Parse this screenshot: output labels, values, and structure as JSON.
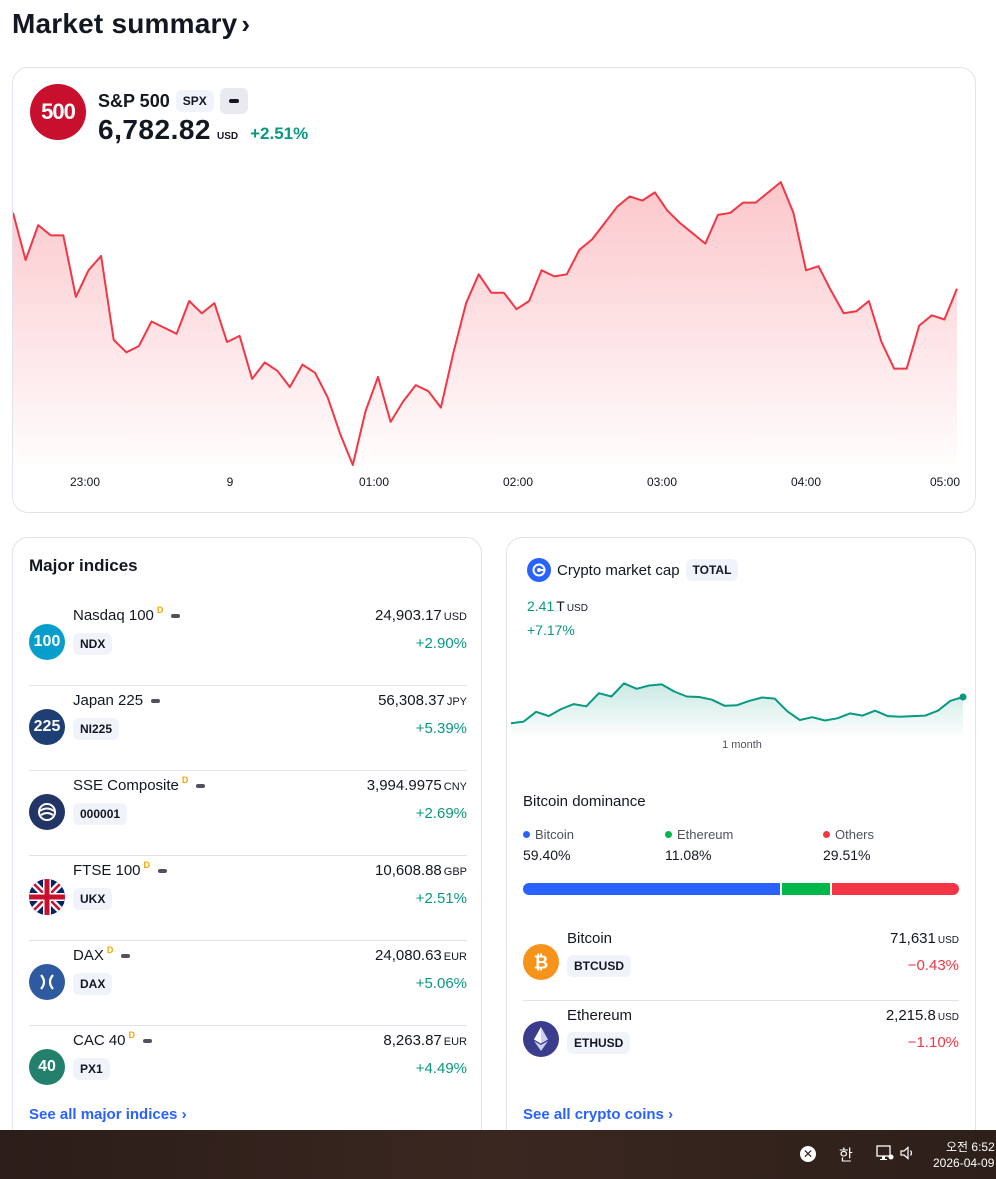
{
  "page": {
    "title": "Market summary",
    "chevron": "›"
  },
  "spx": {
    "logo_text": "500",
    "name": "S&P 500",
    "symbol": "SPX",
    "price": "6,782.82",
    "currency": "USD",
    "change": "+2.51%",
    "accent": "#c8102e",
    "line_color": "#f23645",
    "x_ticks": [
      "23:00",
      "9",
      "01:00",
      "02:00",
      "03:00",
      "04:00",
      "05:00"
    ]
  },
  "chart_data": [
    {
      "type": "area",
      "title": "S&P 500",
      "xlabel": "",
      "ylabel": "",
      "tick_labels": [
        "23:00",
        "9",
        "01:00",
        "02:00",
        "03:00",
        "04:00",
        "05:00"
      ],
      "ylim": [
        6658,
        6798
      ],
      "values": [
        6781,
        6758,
        6775,
        6770,
        6770,
        6740,
        6753,
        6760,
        6719,
        6713,
        6716,
        6728,
        6725,
        6722,
        6738,
        6732,
        6737,
        6718,
        6721,
        6700,
        6708,
        6704,
        6696,
        6707,
        6703,
        6691,
        6673,
        6658,
        6684,
        6701,
        6679,
        6689,
        6697,
        6694,
        6686,
        6713,
        6737,
        6751,
        6742,
        6742,
        6734,
        6738,
        6753,
        6750,
        6751,
        6763,
        6768,
        6776,
        6784,
        6789,
        6787,
        6791,
        6782,
        6776,
        6771,
        6766,
        6780,
        6781,
        6786,
        6786,
        6791,
        6796,
        6781,
        6753,
        6755,
        6743,
        6732,
        6733,
        6738,
        6718,
        6705,
        6705,
        6726,
        6731,
        6729,
        6744
      ]
    },
    {
      "type": "area",
      "title": "Crypto market cap",
      "xlabel": "1 month",
      "ylabel": "",
      "ylim": [
        2.3,
        2.45
      ],
      "values": [
        2.327,
        2.33,
        2.348,
        2.34,
        2.353,
        2.362,
        2.358,
        2.382,
        2.376,
        2.4,
        2.39,
        2.396,
        2.398,
        2.385,
        2.376,
        2.375,
        2.37,
        2.359,
        2.36,
        2.368,
        2.374,
        2.372,
        2.349,
        2.333,
        2.338,
        2.332,
        2.336,
        2.345,
        2.341,
        2.35,
        2.34,
        2.339,
        2.34,
        2.341,
        2.35,
        2.368,
        2.375
      ]
    }
  ],
  "major_indices": {
    "title": "Major indices",
    "see_all": "See all major indices",
    "items": [
      {
        "logo_text": "100",
        "logo_color": "#089ecb",
        "name": "Nasdaq 100",
        "flag": "D",
        "symbol": "NDX",
        "value": "24,903.17",
        "currency": "USD",
        "change": "+2.90%"
      },
      {
        "logo_text": "225",
        "logo_color": "#1e3f73",
        "name": "Japan 225",
        "flag": "",
        "symbol": "NI225",
        "value": "56,308.37",
        "currency": "JPY",
        "change": "+5.39%"
      },
      {
        "logo_text": "",
        "logo_color": "#233566",
        "name": "SSE Composite",
        "flag": "D",
        "symbol": "000001",
        "value": "3,994.9975",
        "currency": "CNY",
        "change": "+2.69%"
      },
      {
        "logo_text": "",
        "logo_color": "#012169",
        "name": "FTSE 100",
        "flag": "D",
        "symbol": "UKX",
        "value": "10,608.88",
        "currency": "GBP",
        "change": "+2.51%"
      },
      {
        "logo_text": "",
        "logo_color": "#2d5aa0",
        "name": "DAX",
        "flag": "D",
        "symbol": "DAX",
        "value": "24,080.63",
        "currency": "EUR",
        "change": "+5.06%"
      },
      {
        "logo_text": "40",
        "logo_color": "#22806c",
        "name": "CAC 40",
        "flag": "D",
        "symbol": "PX1",
        "value": "8,263.87",
        "currency": "EUR",
        "change": "+4.49%"
      }
    ]
  },
  "crypto": {
    "title": "Crypto market cap",
    "symbol": "TOTAL",
    "value": "2.41",
    "unit": "T",
    "currency": "USD",
    "change": "+7.17%",
    "period": "1 month",
    "line_color": "#089981",
    "dominance": {
      "title": "Bitcoin dominance",
      "items": [
        {
          "name": "Bitcoin",
          "value": "59.40%",
          "share": 59.4,
          "color": "#2962ff"
        },
        {
          "name": "Ethereum",
          "value": "11.08%",
          "share": 11.08,
          "color": "#00b84a"
        },
        {
          "name": "Others",
          "value": "29.51%",
          "share": 29.51,
          "color": "#f23645"
        }
      ]
    },
    "coins": [
      {
        "name": "Bitcoin",
        "symbol": "BTCUSD",
        "value": "71,631",
        "currency": "USD",
        "change": "−0.43%",
        "logo_color": "#f7931a"
      },
      {
        "name": "Ethereum",
        "symbol": "ETHUSD",
        "value": "2,215.8",
        "currency": "USD",
        "change": "−1.10%",
        "logo_color": "#3c3c8c"
      }
    ],
    "see_all": "See all crypto coins"
  },
  "taskbar": {
    "close_glyph": "✕",
    "ime": "한",
    "time": "오전 6:52",
    "date": "2026-04-09"
  }
}
